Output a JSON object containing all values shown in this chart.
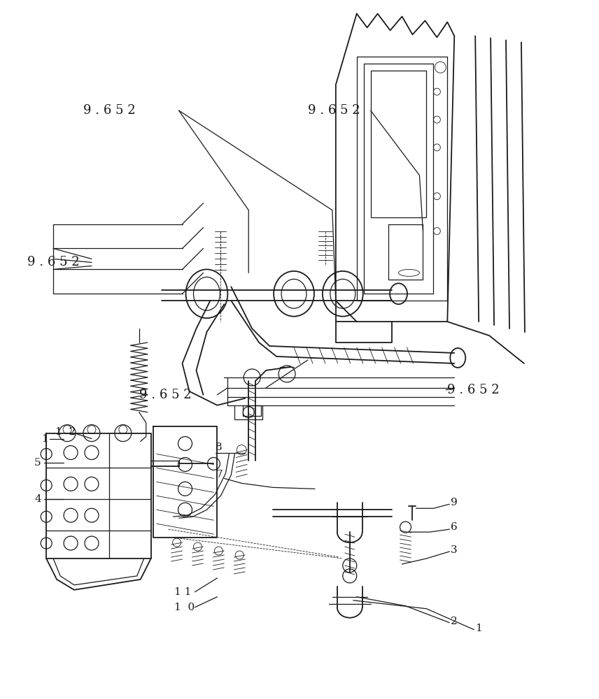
{
  "bg_color": "#ffffff",
  "lc": "#1a1a1a",
  "figsize": [
    8.56,
    10.0
  ],
  "dpi": 100,
  "lw_main": 1.3,
  "lw_med": 0.9,
  "lw_thin": 0.6
}
